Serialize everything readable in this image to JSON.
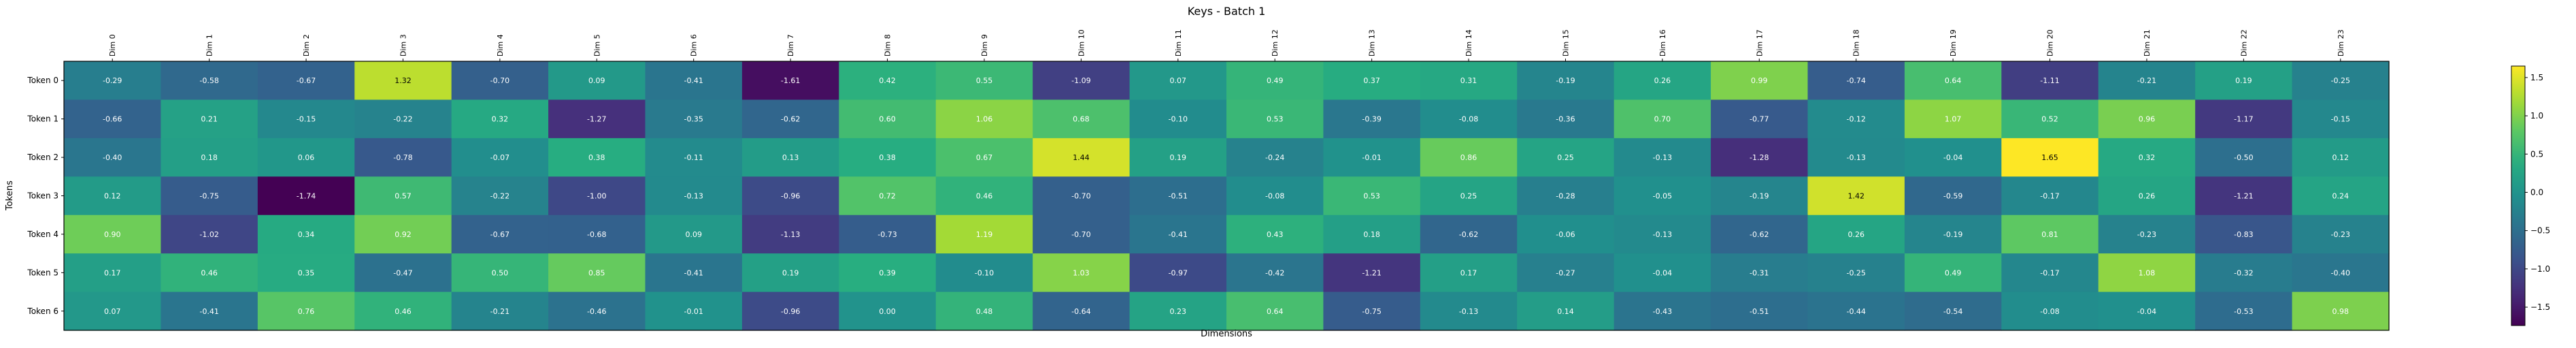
{
  "chart_data": {
    "type": "heatmap",
    "title": "Keys - Batch 1",
    "xlabel": "Dimensions",
    "ylabel": "Tokens",
    "x_categories": [
      "Dim 0",
      "Dim 1",
      "Dim 2",
      "Dim 3",
      "Dim 4",
      "Dim 5",
      "Dim 6",
      "Dim 7",
      "Dim 8",
      "Dim 9",
      "Dim 10",
      "Dim 11",
      "Dim 12",
      "Dim 13",
      "Dim 14",
      "Dim 15",
      "Dim 16",
      "Dim 17",
      "Dim 18",
      "Dim 19",
      "Dim 20",
      "Dim 21",
      "Dim 22",
      "Dim 23"
    ],
    "y_categories": [
      "Token 0",
      "Token 1",
      "Token 2",
      "Token 3",
      "Token 4",
      "Token 5",
      "Token 6"
    ],
    "values": [
      [
        -0.29,
        -0.58,
        -0.67,
        1.32,
        -0.7,
        0.09,
        -0.41,
        -1.61,
        0.42,
        0.55,
        -1.09,
        0.07,
        0.49,
        0.37,
        0.31,
        -0.19,
        0.26,
        0.99,
        -0.74,
        0.64,
        -1.11,
        -0.21,
        0.19,
        -0.25
      ],
      [
        -0.66,
        0.21,
        -0.15,
        -0.22,
        0.32,
        -1.27,
        -0.35,
        -0.62,
        0.6,
        1.06,
        0.68,
        -0.1,
        0.53,
        -0.39,
        -0.08,
        -0.36,
        0.7,
        -0.77,
        -0.12,
        1.07,
        0.52,
        0.96,
        -1.17,
        -0.15
      ],
      [
        -0.4,
        0.18,
        0.06,
        -0.78,
        -0.07,
        0.38,
        -0.11,
        0.13,
        0.38,
        0.67,
        1.44,
        0.19,
        -0.24,
        -0.01,
        0.86,
        0.25,
        -0.13,
        -1.28,
        -0.13,
        -0.04,
        1.65,
        0.32,
        -0.5,
        0.12
      ],
      [
        0.12,
        -0.75,
        -1.74,
        0.57,
        -0.22,
        -1.0,
        -0.13,
        -0.96,
        0.72,
        0.46,
        -0.7,
        -0.51,
        -0.08,
        0.53,
        0.25,
        -0.28,
        -0.05,
        -0.19,
        1.42,
        -0.59,
        -0.17,
        0.26,
        -1.21,
        0.24
      ],
      [
        0.9,
        -1.02,
        0.34,
        0.92,
        -0.67,
        -0.68,
        0.09,
        -1.13,
        -0.73,
        1.19,
        -0.7,
        -0.41,
        0.43,
        0.18,
        -0.62,
        -0.06,
        -0.13,
        -0.62,
        0.26,
        -0.19,
        0.81,
        -0.23,
        -0.83,
        -0.23
      ],
      [
        0.17,
        0.46,
        0.35,
        -0.47,
        0.5,
        0.85,
        -0.41,
        0.19,
        0.39,
        -0.1,
        1.03,
        -0.97,
        -0.42,
        -1.21,
        0.17,
        -0.27,
        -0.04,
        -0.31,
        -0.25,
        0.49,
        -0.17,
        1.08,
        -0.32,
        -0.4
      ],
      [
        0.07,
        -0.41,
        0.76,
        0.46,
        -0.21,
        -0.46,
        -0.01,
        -0.96,
        -0.0,
        0.48,
        -0.64,
        0.23,
        0.64,
        -0.75,
        -0.13,
        0.14,
        -0.43,
        -0.51,
        -0.44,
        -0.54,
        -0.08,
        -0.04,
        -0.53,
        0.98
      ]
    ],
    "colormap": "viridis",
    "vmin": -1.74,
    "vmax": 1.65,
    "colorbar_ticks": [
      "1.5",
      "1.0",
      "0.5",
      "0.0",
      "−0.5",
      "−1.0",
      "−1.5"
    ],
    "colorbar_tick_values": [
      1.5,
      1.0,
      0.5,
      0.0,
      -0.5,
      -1.0,
      -1.5
    ],
    "grid": false,
    "legend": "colorbar-right"
  }
}
